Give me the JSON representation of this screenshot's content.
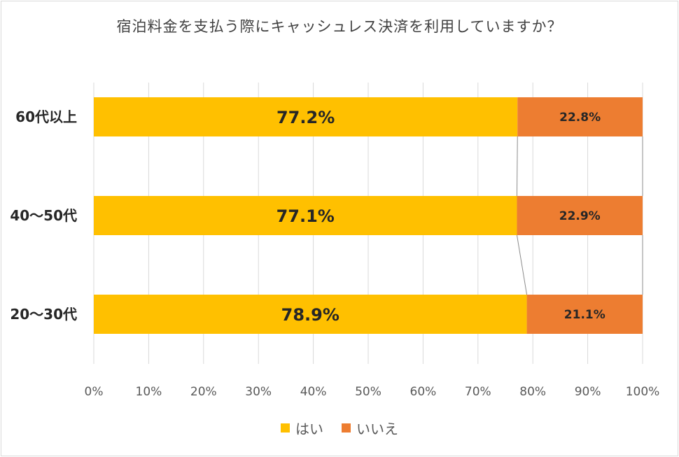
{
  "chart_data": {
    "type": "bar",
    "orientation": "horizontal",
    "stacked": true,
    "title": "宿泊料金を支払う際にキャッシュレス決済を利用していますか？",
    "categories": [
      "60代以上",
      "40～50代",
      "20～30代"
    ],
    "series": [
      {
        "name": "はい",
        "color": "#FFC000",
        "values": [
          77.2,
          77.1,
          78.9
        ],
        "labels": [
          "77.2%",
          "77.1%",
          "78.9%"
        ]
      },
      {
        "name": "いいえ",
        "color": "#ED7D31",
        "values": [
          22.8,
          22.9,
          21.1
        ],
        "labels": [
          "22.8%",
          "22.9%",
          "21.1%"
        ]
      }
    ],
    "xlim": [
      0,
      100
    ],
    "xticks": [
      "0%",
      "10%",
      "20%",
      "30%",
      "40%",
      "50%",
      "60%",
      "70%",
      "80%",
      "90%",
      "100%"
    ],
    "grid": true,
    "series_lines": true,
    "legend_position": "bottom"
  }
}
